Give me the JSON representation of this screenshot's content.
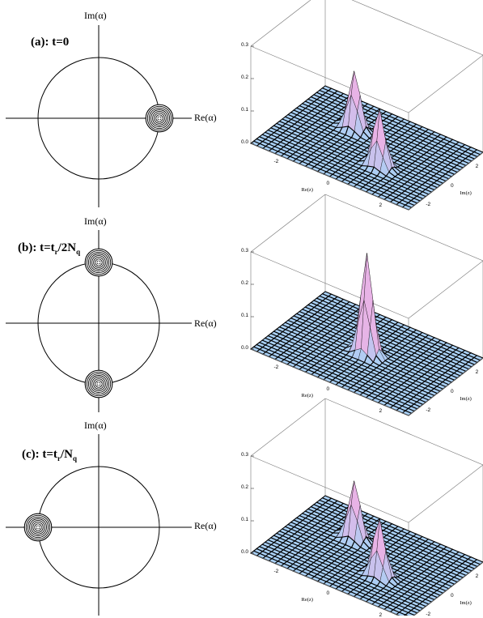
{
  "panels": [
    {
      "key": "a",
      "label": "(a): t=0",
      "im_label": "Im(α)",
      "re_label": "Re(α)",
      "phase_space_peaks_deg": [
        0
      ],
      "surface": {
        "peaks": [
          {
            "x": -0.9,
            "y": 0.9,
            "height": 0.18
          },
          {
            "x": 0.9,
            "y": -0.9,
            "height": 0.18
          }
        ],
        "z_ticks": [
          "0.0",
          "0.1",
          "0.2",
          "0.3"
        ],
        "re_ticks": [
          "-2",
          "0",
          "2"
        ],
        "im_ticks": [
          "2",
          "0",
          "-2"
        ],
        "re_axis_label": "Re(z)",
        "im_axis_label": "Im(z)"
      }
    },
    {
      "key": "b",
      "label_main": "(b): t=t",
      "label_sub1": "r",
      "label_mid": "/2N",
      "label_sub2": "q",
      "im_label": "Im(α)",
      "re_label": "Re(α)",
      "phase_space_peaks_deg": [
        90,
        270
      ],
      "surface": {
        "peaks": [
          {
            "x": 0.0,
            "y": 0.0,
            "height": 0.31
          }
        ],
        "z_ticks": [
          "0.0",
          "0.1",
          "0.2",
          "0.3"
        ],
        "re_ticks": [
          "-2",
          "0",
          "2"
        ],
        "im_ticks": [
          "2",
          "0",
          "-2"
        ],
        "re_axis_label": "Re(z)",
        "im_axis_label": "Im(z)"
      }
    },
    {
      "key": "c",
      "label_main": "(c): t=t",
      "label_sub1": "r",
      "label_mid": "/N",
      "label_sub2": "q",
      "im_label": "Im(α)",
      "re_label": "Re(α)",
      "phase_space_peaks_deg": [
        180
      ],
      "surface": {
        "peaks": [
          {
            "x": -0.9,
            "y": 0.9,
            "height": 0.18
          },
          {
            "x": 0.9,
            "y": -0.9,
            "height": 0.18
          }
        ],
        "z_ticks": [
          "0.0",
          "0.1",
          "0.2",
          "0.3"
        ],
        "re_ticks": [
          "-2",
          "0",
          "2"
        ],
        "im_ticks": [
          "2",
          "0",
          "-2"
        ],
        "re_axis_label": "Re(z)",
        "im_axis_label": "Im(z)"
      }
    }
  ],
  "colors": {
    "surface_base": "#a9d0f5",
    "surface_peak": "#e8b3e6",
    "grid": "#000000",
    "line": "#000000"
  }
}
